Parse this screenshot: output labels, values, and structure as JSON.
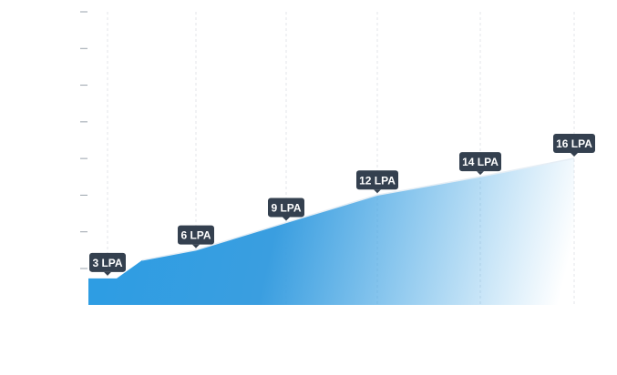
{
  "chart_data": {
    "type": "area",
    "x_positions": [
      1,
      2,
      3,
      4,
      5,
      6
    ],
    "points": [
      {
        "label": "3 LPA",
        "value": 3
      },
      {
        "label": "6 LPA",
        "value": 6
      },
      {
        "label": "9 LPA",
        "value": 9
      },
      {
        "label": "12 LPA",
        "value": 12
      },
      {
        "label": "14 LPA",
        "value": 14
      },
      {
        "label": "16 LPA",
        "value": 16
      }
    ],
    "ylim": [
      0,
      32
    ],
    "ytick_count": 8,
    "grid": "vertical-dashed",
    "colors": {
      "area": "#2e9de3",
      "line": "#e6eef5",
      "tooltip_bg": "#34404f",
      "tooltip_text": "#ffffff",
      "tick": "#9aa3ad",
      "grid": "#e3e6ea"
    }
  }
}
